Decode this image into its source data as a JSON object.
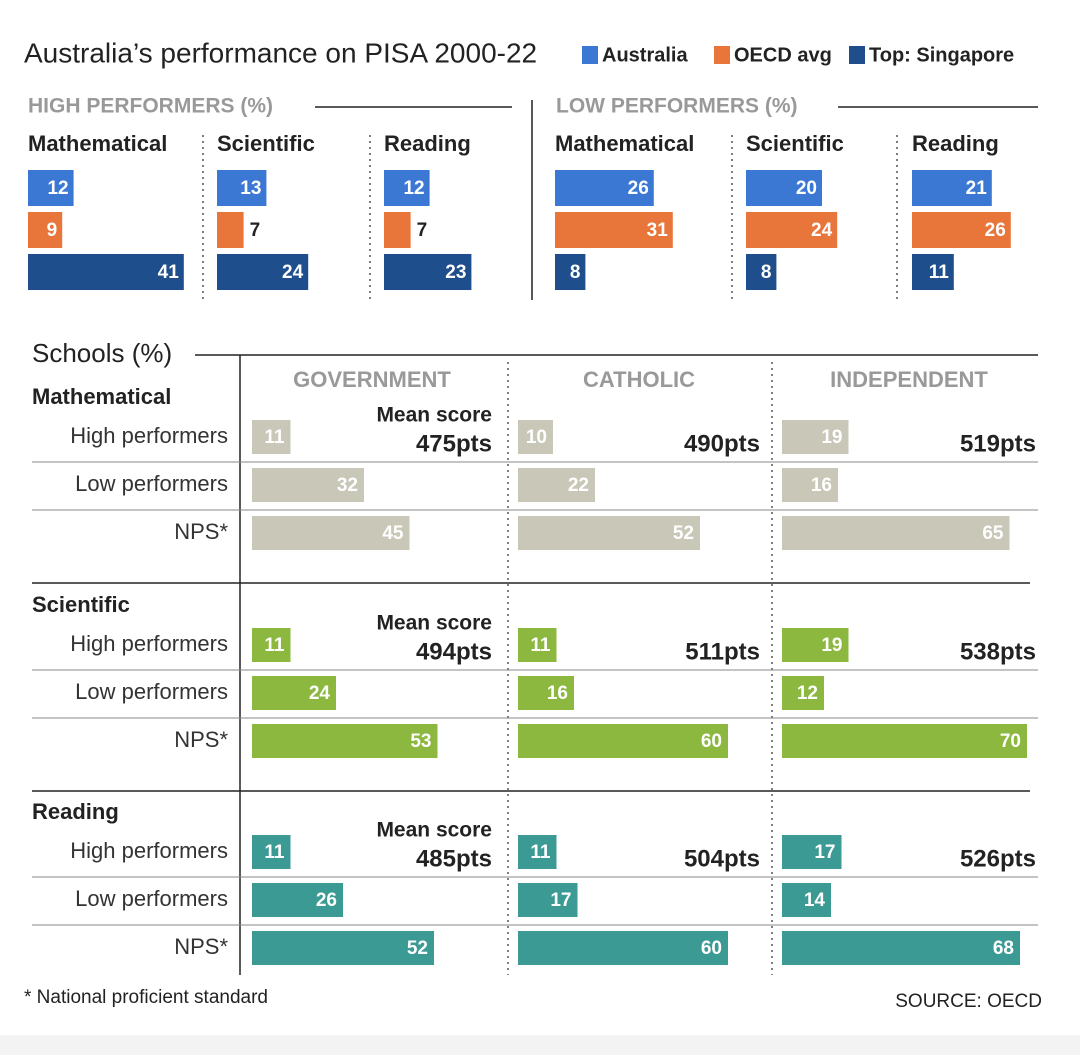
{
  "title": "Australia’s performance on PISA 2000-22",
  "legend": [
    {
      "name": "Australia",
      "color": "#3a78d4"
    },
    {
      "name": "OECD avg",
      "color": "#e8763a"
    },
    {
      "name": "Top: Singapore",
      "color": "#1f4e8c"
    }
  ],
  "high_performers": {
    "title": "HIGH PERFORMERS (%)",
    "panels": [
      {
        "label": "Mathematical",
        "values": [
          12,
          9,
          41
        ]
      },
      {
        "label": "Scientific",
        "values": [
          13,
          7,
          24
        ]
      },
      {
        "label": "Reading",
        "values": [
          12,
          7,
          23
        ]
      }
    ]
  },
  "low_performers": {
    "title": "LOW PERFORMERS (%)",
    "panels": [
      {
        "label": "Mathematical",
        "values": [
          26,
          31,
          8
        ]
      },
      {
        "label": "Scientific",
        "values": [
          20,
          24,
          8
        ]
      },
      {
        "label": "Reading",
        "values": [
          21,
          26,
          11
        ]
      }
    ]
  },
  "schools": {
    "title": "Schools (%)",
    "sectors": [
      "GOVERNMENT",
      "CATHOLIC",
      "INDEPENDENT"
    ],
    "row_labels": [
      "High performers",
      "Low performers",
      "NPS*"
    ],
    "mean_score_label": "Mean score",
    "subjects": [
      {
        "name": "Mathematical",
        "color": "#c9c7b8",
        "mean_scores": [
          "475pts",
          "490pts",
          "519pts"
        ],
        "values": [
          [
            11,
            32,
            45
          ],
          [
            10,
            22,
            52
          ],
          [
            19,
            16,
            65
          ]
        ]
      },
      {
        "name": "Scientific",
        "color": "#8cb83f",
        "mean_scores": [
          "494pts",
          "511pts",
          "538pts"
        ],
        "values": [
          [
            11,
            24,
            53
          ],
          [
            11,
            16,
            60
          ],
          [
            19,
            12,
            70
          ]
        ]
      },
      {
        "name": "Reading",
        "color": "#3c9a94",
        "mean_scores": [
          "485pts",
          "504pts",
          "526pts"
        ],
        "values": [
          [
            11,
            26,
            52
          ],
          [
            11,
            17,
            60
          ],
          [
            17,
            14,
            68
          ]
        ]
      }
    ]
  },
  "footnote": "* National proficient standard",
  "source": "SOURCE: OECD"
}
